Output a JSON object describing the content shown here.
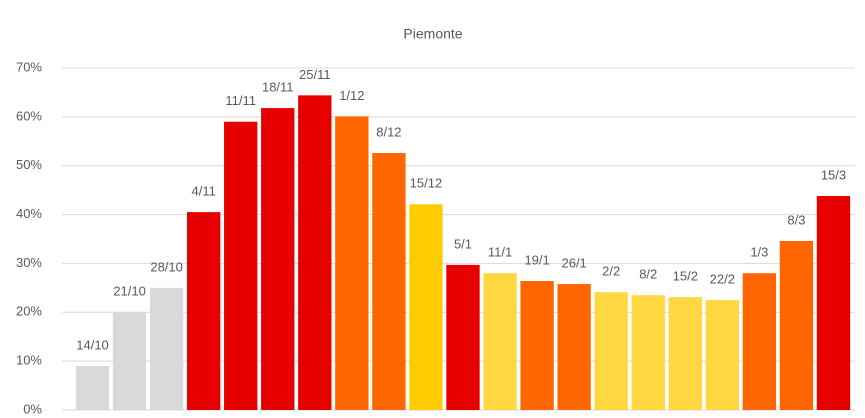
{
  "chart_data": {
    "type": "bar",
    "title": "Piemonte",
    "categories": [
      "14/10",
      "21/10",
      "28/10",
      "4/11",
      "11/11",
      "18/11",
      "25/11",
      "1/12",
      "8/12",
      "15/12",
      "5/1",
      "11/1",
      "19/1",
      "26/1",
      "2/2",
      "8/2",
      "15/2",
      "22/2",
      "1/3",
      "8/3",
      "15/3"
    ],
    "values": [
      9,
      20,
      25,
      40.5,
      59,
      61.8,
      64.4,
      60.1,
      52.6,
      42.1,
      29.7,
      28,
      26.4,
      25.8,
      24.1,
      23.5,
      23.1,
      22.5,
      28,
      34.6,
      43.8
    ],
    "colors": [
      "#d9d9d9",
      "#d9d9d9",
      "#d9d9d9",
      "#e60000",
      "#e60000",
      "#e60000",
      "#e60000",
      "#ff6600",
      "#ff6600",
      "#ffcc00",
      "#e60000",
      "#ffd740",
      "#ff6600",
      "#ff6600",
      "#ffd740",
      "#ffd740",
      "#ffd740",
      "#ffd740",
      "#ff6600",
      "#ff6600",
      "#e60000"
    ],
    "ylim": [
      0,
      70
    ],
    "yticks": [
      {
        "value": 0,
        "label": "0%"
      },
      {
        "value": 10,
        "label": "10%"
      },
      {
        "value": 20,
        "label": "20%"
      },
      {
        "value": 30,
        "label": "30%"
      },
      {
        "value": 40,
        "label": "40%"
      },
      {
        "value": 50,
        "label": "50%"
      },
      {
        "value": 60,
        "label": "60%"
      },
      {
        "value": 70,
        "label": "70%"
      }
    ],
    "grid": true
  }
}
